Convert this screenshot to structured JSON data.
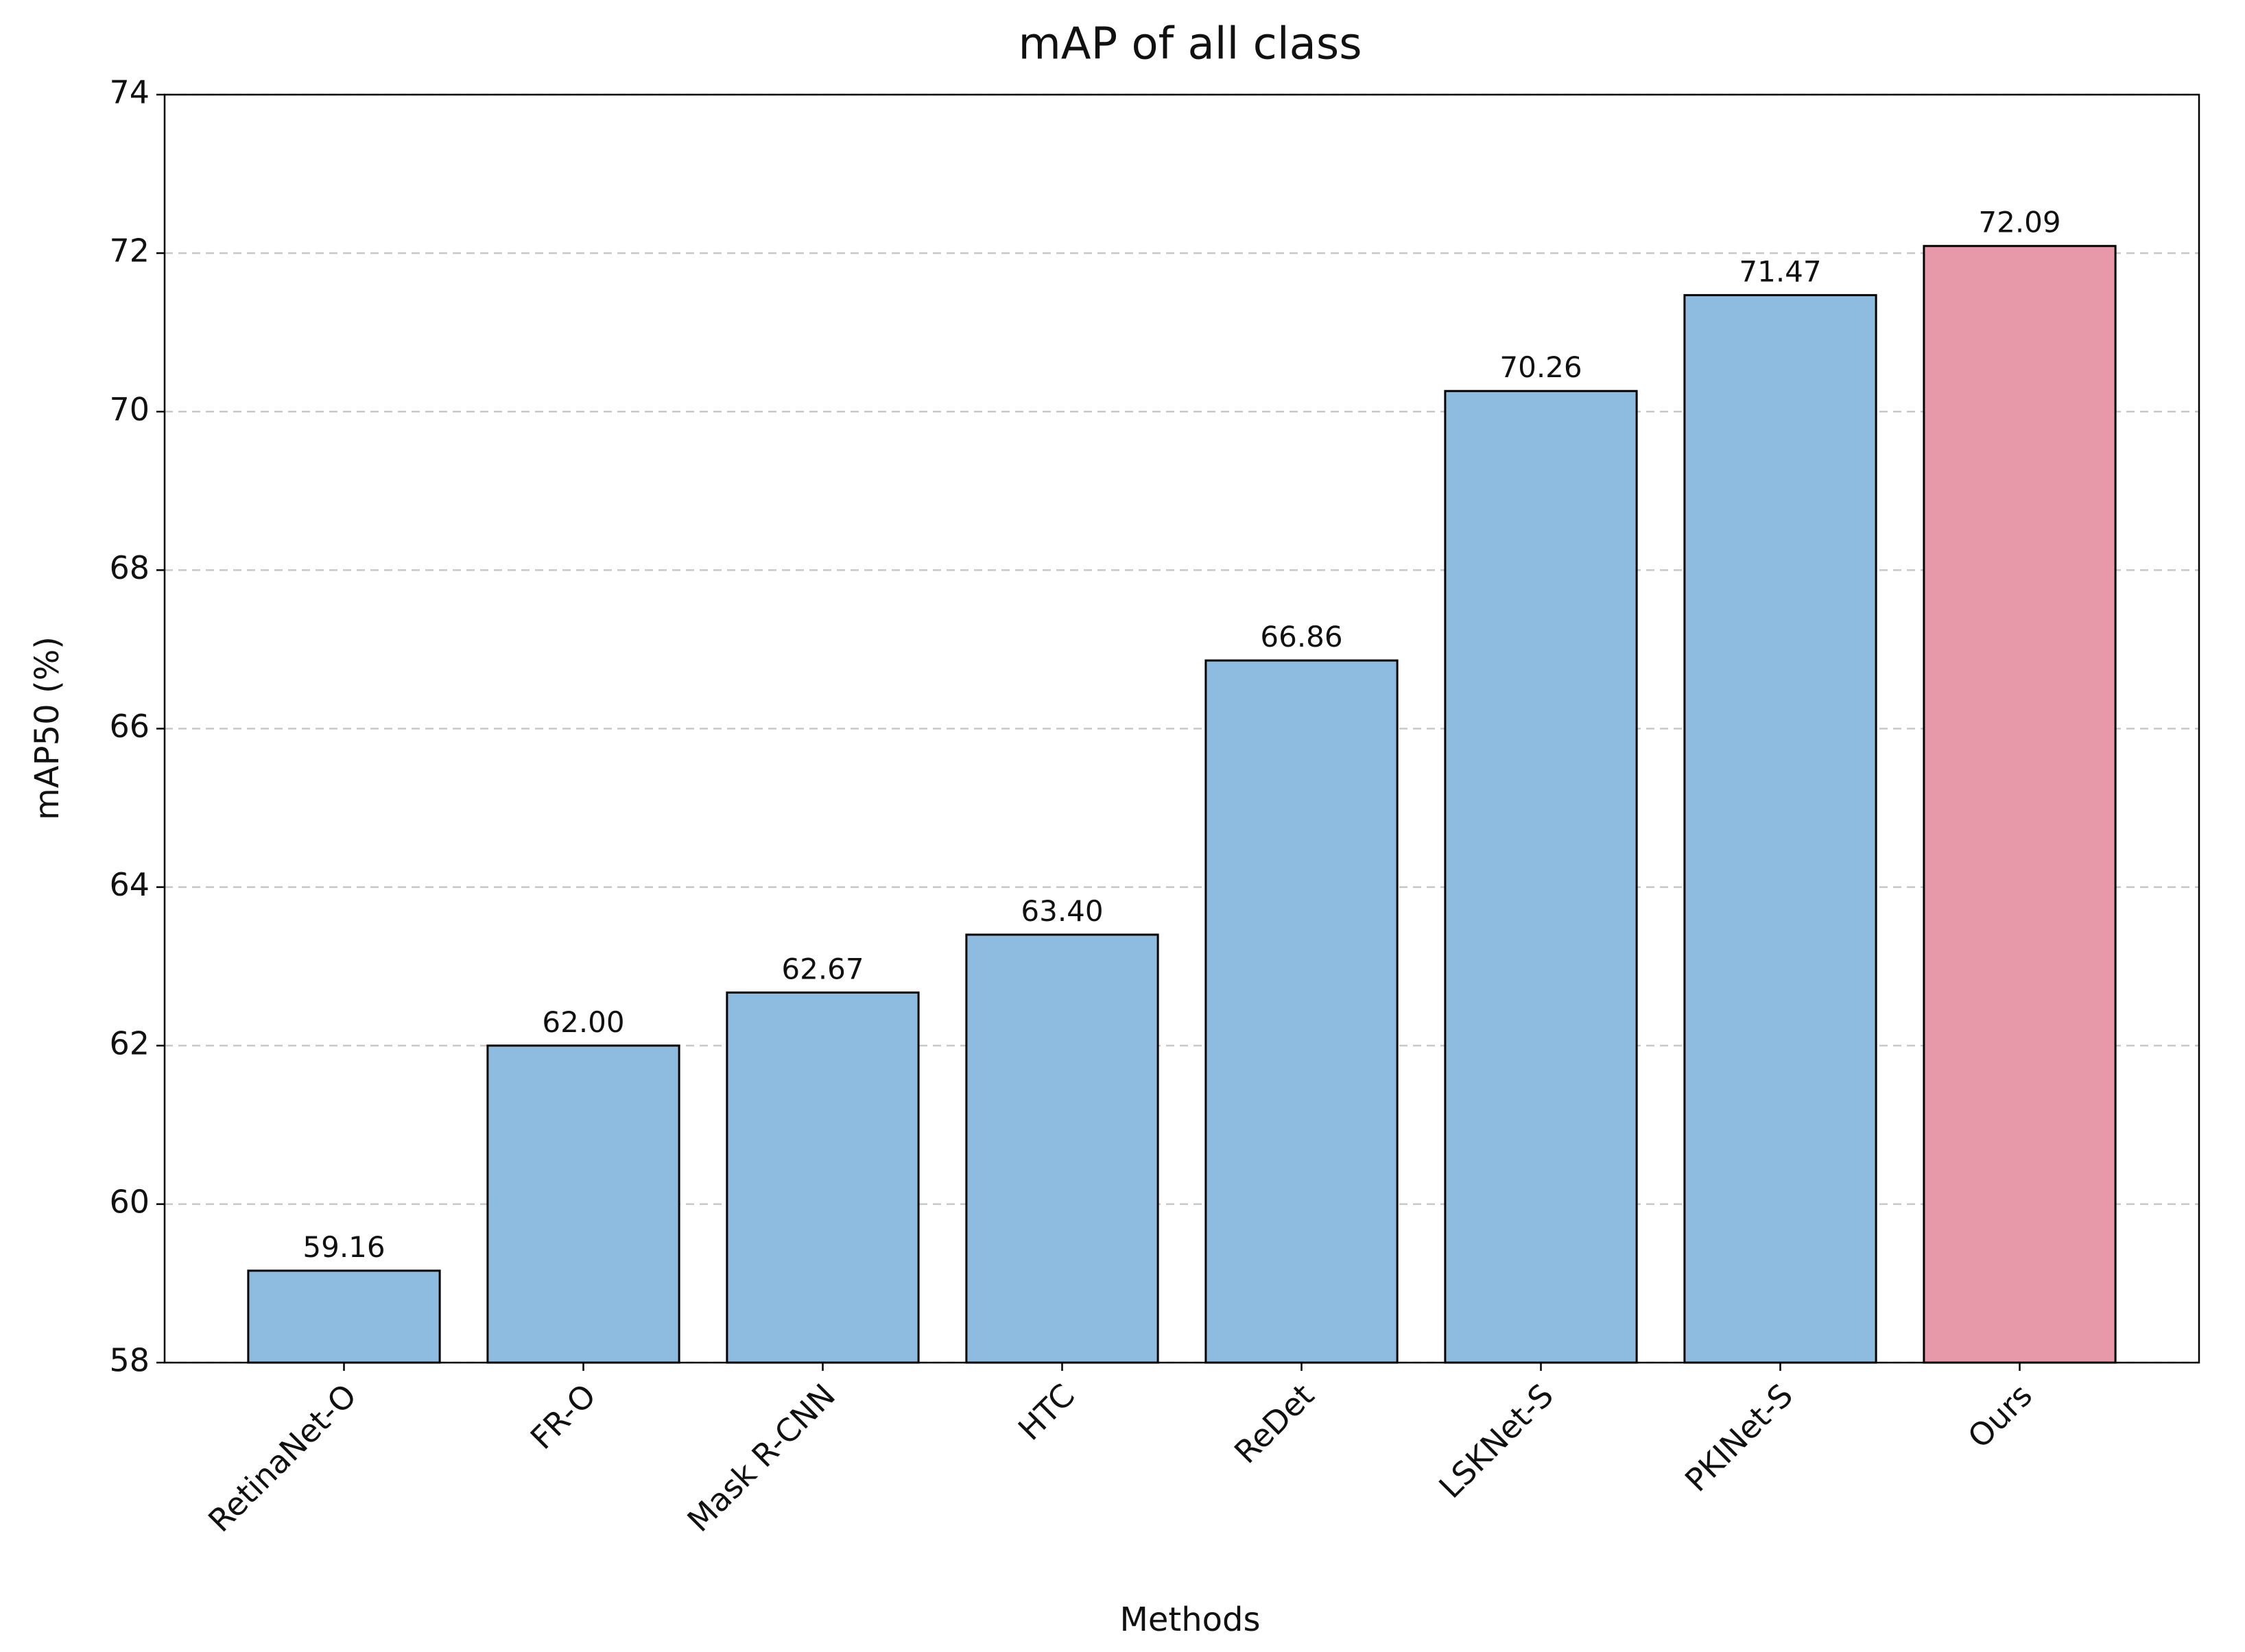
{
  "chart_data": {
    "type": "bar",
    "title": "mAP of all class",
    "x_label": "Methods",
    "y_label": "mAP50 (%)",
    "categories": [
      "RetinaNet-O",
      "FR-O",
      "Mask R-CNN",
      "HTC",
      "ReDet",
      "LSKNet-S",
      "PKINet-S",
      "Ours"
    ],
    "values": [
      59.16,
      62.0,
      62.67,
      63.4,
      66.86,
      70.26,
      71.47,
      72.09
    ],
    "value_labels": [
      "59.16",
      "62.00",
      "62.67",
      "63.40",
      "66.86",
      "70.26",
      "71.47",
      "72.09"
    ],
    "colors": [
      "#8ebce0",
      "#8ebce0",
      "#8ebce0",
      "#8ebce0",
      "#8ebce0",
      "#8ebce0",
      "#8ebce0",
      "#e799aa"
    ],
    "ylim": [
      58,
      74
    ],
    "yticks": [
      58,
      60,
      62,
      64,
      66,
      68,
      70,
      72,
      74
    ],
    "grid": true
  }
}
